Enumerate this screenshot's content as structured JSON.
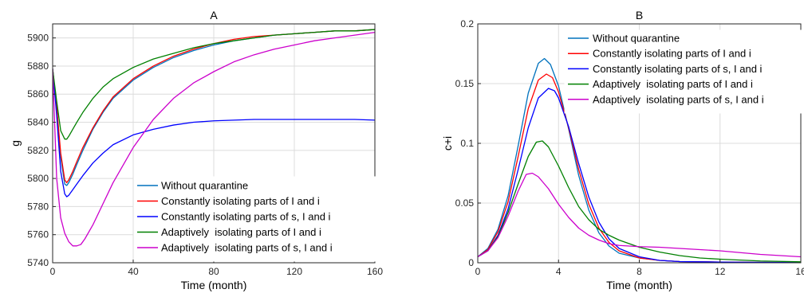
{
  "colors": {
    "without": "#0072BD",
    "constIi": "#FF0000",
    "constSIi": "#0000FF",
    "adaptIi": "#008000",
    "adaptSIi": "#CC00CC"
  },
  "legend_labels": [
    "Without quarantine",
    "Constantly isolating parts of I and i",
    "Constantly isolating parts of s, I and i",
    "Adaptively  isolating parts of I and i",
    "Adaptively  isolating parts of s, I and i"
  ],
  "chart_data": [
    {
      "type": "line",
      "title": "A",
      "xlabel": "Time (month)",
      "ylabel": "g",
      "xlim": [
        0,
        160
      ],
      "ylim": [
        5740,
        5910
      ],
      "xticks": [
        0,
        40,
        80,
        120,
        160
      ],
      "yticks": [
        5740,
        5760,
        5780,
        5800,
        5820,
        5840,
        5860,
        5880,
        5900
      ],
      "grid": true,
      "legend_position": "bottom-right",
      "series": [
        {
          "name": "Without quarantine",
          "color_key": "without",
          "x": [
            0,
            2,
            4,
            6,
            7,
            8,
            10,
            12,
            15,
            20,
            25,
            30,
            40,
            50,
            60,
            70,
            80,
            90,
            100,
            110,
            120,
            130,
            140,
            150,
            160
          ],
          "y": [
            5878,
            5850,
            5815,
            5796,
            5795,
            5797,
            5803,
            5810,
            5820,
            5835,
            5847,
            5857,
            5870,
            5879,
            5886,
            5891,
            5895,
            5898,
            5900,
            5902,
            5903,
            5904,
            5905,
            5905,
            5906
          ]
        },
        {
          "name": "Constantly isolating parts of I and i",
          "color_key": "constIi",
          "x": [
            0,
            2,
            4,
            6,
            7,
            8,
            10,
            12,
            15,
            20,
            25,
            30,
            40,
            50,
            60,
            70,
            80,
            90,
            100,
            110,
            120,
            130,
            140,
            150,
            160
          ],
          "y": [
            5878,
            5851,
            5818,
            5799,
            5797,
            5799,
            5805,
            5812,
            5822,
            5836,
            5848,
            5858,
            5871,
            5880,
            5887,
            5892,
            5896,
            5899,
            5901,
            5902,
            5903,
            5904,
            5905,
            5905,
            5906
          ]
        },
        {
          "name": "Constantly isolating parts of s, I and i",
          "color_key": "constSIi",
          "x": [
            0,
            2,
            4,
            6,
            7,
            8,
            10,
            12,
            15,
            20,
            25,
            30,
            40,
            50,
            60,
            70,
            80,
            90,
            100,
            110,
            120,
            130,
            140,
            150,
            160
          ],
          "y": [
            5878,
            5845,
            5805,
            5789,
            5787,
            5788,
            5792,
            5796,
            5802,
            5811,
            5818,
            5824,
            5831,
            5835,
            5838,
            5840,
            5841,
            5841.5,
            5842,
            5842,
            5842,
            5842,
            5842,
            5842,
            5841.5
          ]
        },
        {
          "name": "Adaptively  isolating parts of I and i",
          "color_key": "adaptIi",
          "x": [
            0,
            2,
            4,
            6,
            7,
            8,
            10,
            12,
            15,
            20,
            25,
            30,
            40,
            50,
            60,
            70,
            80,
            90,
            100,
            110,
            120,
            130,
            140,
            150,
            160
          ],
          "y": [
            5878,
            5855,
            5834,
            5828,
            5828,
            5830,
            5835,
            5840,
            5847,
            5857,
            5865,
            5871,
            5879,
            5885,
            5889,
            5893,
            5896,
            5898,
            5900,
            5902,
            5903,
            5904,
            5905,
            5905,
            5906
          ]
        },
        {
          "name": "Adaptively  isolating parts of s, I and i",
          "color_key": "adaptSIi",
          "x": [
            0,
            2,
            4,
            6,
            8,
            10,
            12,
            14,
            16,
            20,
            25,
            30,
            40,
            50,
            60,
            70,
            80,
            90,
            100,
            110,
            120,
            130,
            140,
            150,
            160
          ],
          "y": [
            5878,
            5800,
            5772,
            5761,
            5755,
            5752,
            5752,
            5753,
            5757,
            5767,
            5782,
            5797,
            5822,
            5842,
            5857,
            5868,
            5876,
            5883,
            5888,
            5892,
            5895,
            5898,
            5900,
            5902,
            5904
          ]
        }
      ]
    },
    {
      "type": "line",
      "title": "B",
      "xlabel": "Time (month)",
      "ylabel": "c+i",
      "xlim": [
        0,
        16
      ],
      "ylim": [
        0,
        0.2
      ],
      "xticks": [
        0,
        4,
        8,
        12,
        16
      ],
      "yticks": [
        0,
        0.05,
        0.1,
        0.15,
        0.2
      ],
      "grid": true,
      "legend_position": "top-right",
      "series": [
        {
          "name": "Without quarantine",
          "color_key": "without",
          "x": [
            0,
            0.5,
            1,
            1.5,
            2,
            2.5,
            3,
            3.3,
            3.6,
            4,
            4.5,
            5,
            5.5,
            6,
            6.5,
            7,
            8,
            9,
            10,
            12,
            14,
            16
          ],
          "y": [
            0.005,
            0.012,
            0.028,
            0.056,
            0.098,
            0.142,
            0.167,
            0.171,
            0.166,
            0.148,
            0.112,
            0.073,
            0.044,
            0.025,
            0.014,
            0.008,
            0.004,
            0.002,
            0.001,
            0.0005,
            0.0003,
            0.0002
          ]
        },
        {
          "name": "Constantly isolating parts of I and i",
          "color_key": "constIi",
          "x": [
            0,
            0.5,
            1,
            1.5,
            2,
            2.5,
            3,
            3.4,
            3.7,
            4,
            4.5,
            5,
            5.5,
            6,
            6.5,
            7,
            8,
            9,
            10,
            12,
            14,
            16
          ],
          "y": [
            0.005,
            0.011,
            0.026,
            0.051,
            0.089,
            0.129,
            0.153,
            0.158,
            0.155,
            0.143,
            0.113,
            0.078,
            0.049,
            0.029,
            0.017,
            0.01,
            0.004,
            0.002,
            0.001,
            0.0006,
            0.0003,
            0.0002
          ]
        },
        {
          "name": "Constantly isolating parts of s, I and i",
          "color_key": "constSIi",
          "x": [
            0,
            0.5,
            1,
            1.5,
            2,
            2.5,
            3,
            3.5,
            3.8,
            4,
            4.5,
            5,
            5.5,
            6,
            6.5,
            7,
            8,
            9,
            10,
            12,
            14,
            16
          ],
          "y": [
            0.005,
            0.01,
            0.023,
            0.045,
            0.078,
            0.113,
            0.138,
            0.146,
            0.144,
            0.138,
            0.114,
            0.083,
            0.055,
            0.034,
            0.02,
            0.012,
            0.005,
            0.002,
            0.001,
            0.0006,
            0.0003,
            0.0002
          ]
        },
        {
          "name": "Adaptively  isolating parts of I and i",
          "color_key": "adaptIi",
          "x": [
            0,
            0.5,
            1,
            1.5,
            2,
            2.5,
            2.9,
            3.2,
            3.5,
            4,
            4.5,
            5,
            5.5,
            6,
            6.5,
            7,
            8,
            9,
            10,
            11,
            12,
            14,
            16
          ],
          "y": [
            0.005,
            0.01,
            0.022,
            0.042,
            0.066,
            0.089,
            0.101,
            0.102,
            0.097,
            0.081,
            0.063,
            0.047,
            0.036,
            0.028,
            0.023,
            0.019,
            0.013,
            0.009,
            0.006,
            0.004,
            0.003,
            0.0015,
            0.0008
          ]
        },
        {
          "name": "Adaptively  isolating parts of s, I and i",
          "color_key": "adaptSIi",
          "x": [
            0,
            0.5,
            1,
            1.5,
            2,
            2.4,
            2.7,
            3,
            3.5,
            4,
            4.5,
            5,
            5.5,
            6,
            6.5,
            7,
            8,
            9,
            10,
            12,
            14,
            16
          ],
          "y": [
            0.005,
            0.01,
            0.021,
            0.039,
            0.06,
            0.074,
            0.075,
            0.072,
            0.062,
            0.049,
            0.038,
            0.029,
            0.023,
            0.019,
            0.016,
            0.0145,
            0.0135,
            0.013,
            0.012,
            0.01,
            0.007,
            0.005
          ]
        }
      ]
    }
  ]
}
